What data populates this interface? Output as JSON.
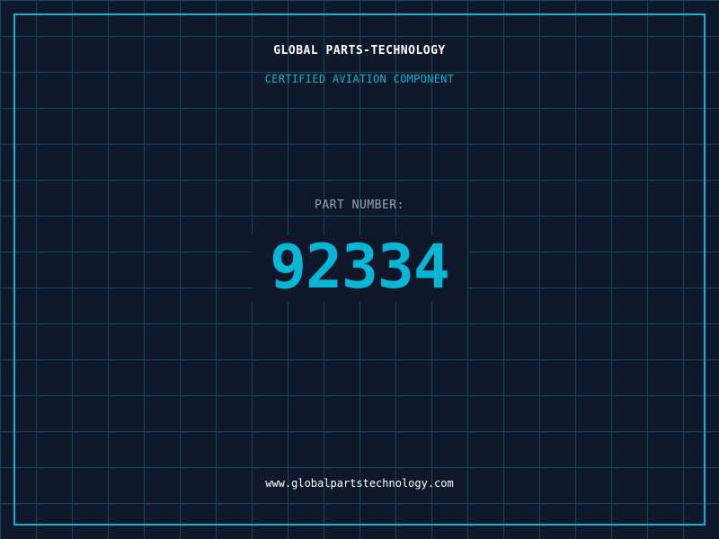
{
  "header": {
    "company": "GLOBAL PARTS-TECHNOLOGY",
    "subtitle": "CERTIFIED AVIATION COMPONENT"
  },
  "part": {
    "label": "PART NUMBER:",
    "number": "92334"
  },
  "footer": {
    "url": "www.globalpartstechnology.com"
  },
  "colors": {
    "accent": "#06b6d4",
    "background": "#0f172a",
    "grid": "#0e4a5f"
  }
}
